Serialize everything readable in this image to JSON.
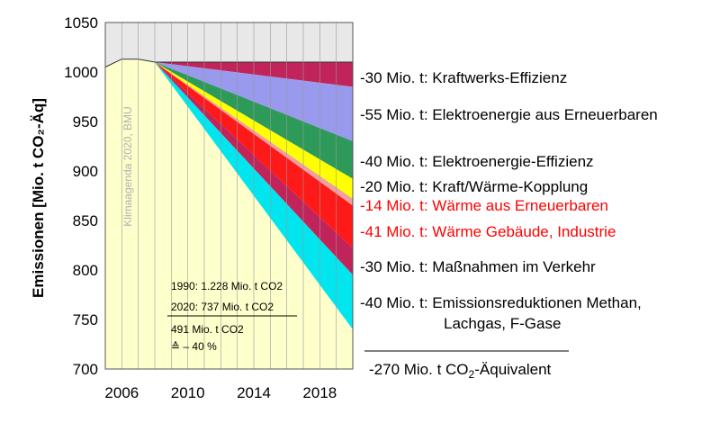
{
  "chart_data": {
    "type": "area",
    "ylabel": "Emissionen [Mio. t CO₂-Äq]",
    "ylim": [
      700,
      1050
    ],
    "xlim": [
      2005,
      2020
    ],
    "y_ticks": [
      "1050",
      "1000",
      "950",
      "900",
      "850",
      "800",
      "750",
      "700"
    ],
    "x_ticks": [
      "2006",
      "2010",
      "2014",
      "2018"
    ],
    "grid": "vertical",
    "baseline": {
      "x": [
        2005,
        2006,
        2007,
        2008,
        2020
      ],
      "y": [
        1005,
        1013,
        1013,
        1010,
        1010
      ]
    },
    "series": [
      {
        "color": "#c0245a",
        "x": [
          2008,
          2020
        ],
        "y": [
          1010,
          985
        ]
      },
      {
        "color": "#9999ee",
        "x": [
          2008,
          2020
        ],
        "y": [
          1010,
          930
        ]
      },
      {
        "color": "#2e9a5a",
        "x": [
          2008,
          2020
        ],
        "y": [
          1010,
          892
        ]
      },
      {
        "color": "#ffff00",
        "x": [
          2008,
          2020
        ],
        "y": [
          1010,
          872
        ]
      },
      {
        "color": "#f0a0a0",
        "x": [
          2008,
          2020
        ],
        "y": [
          1010,
          865
        ]
      },
      {
        "color": "#ff1a1a",
        "x": [
          2008,
          2020
        ],
        "y": [
          1010,
          822
        ]
      },
      {
        "color": "#c0245a",
        "x": [
          2008,
          2020
        ],
        "y": [
          1010,
          795
        ]
      },
      {
        "color": "#00e5ee",
        "x": [
          2008,
          2020
        ],
        "y": [
          1010,
          740
        ]
      }
    ],
    "annotations": [
      {
        "text": "-30 Mio. t: Kraftwerks-Effizienz",
        "color": "#000000"
      },
      {
        "text": "-55 Mio. t: Elektroenergie aus Erneuerbaren",
        "color": "#000000"
      },
      {
        "text": "-40 Mio. t: Elektroenergie-Effizienz",
        "color": "#000000"
      },
      {
        "text": "-20 Mio. t: Kraft/Wärme-Kopplung",
        "color": "#000000"
      },
      {
        "text": "-14 Mio. t: Wärme aus Erneuerbaren",
        "color": "#ff0000"
      },
      {
        "text": "-41 Mio. t: Wärme Gebäude, Industrie",
        "color": "#ff0000"
      },
      {
        "text": "-30 Mio. t: Maßnahmen im Verkehr",
        "color": "#000000"
      },
      {
        "text": "-40 Mio. t: Emissionsreduktionen Methan,",
        "color": "#000000"
      },
      {
        "text": "Lachgas, F-Gase",
        "color": "#000000"
      }
    ],
    "total_prefix": "-270 Mio. t CO",
    "total_sub": "2",
    "total_suffix": "-Äquivalent",
    "infobox": {
      "line1": "1990: 1.228 Mio. t CO2",
      "line2": "2020:   737 Mio. t CO2",
      "line3": "491 Mio. t CO2",
      "line4": "≙ – 40 %"
    },
    "watermark": "Klimaagenda 2020, BMU",
    "colors": {
      "plot_bg": "#ffffcc",
      "top_band": "#e8e8e8",
      "grid": "#999999"
    }
  }
}
